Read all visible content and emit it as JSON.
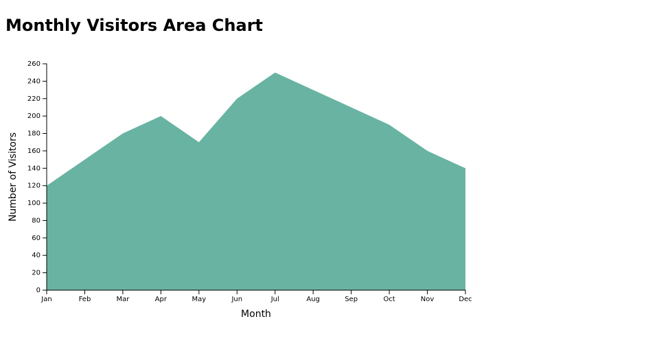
{
  "chart_data": {
    "type": "area",
    "title": "Monthly Visitors Area Chart",
    "x_label": "Month",
    "y_label": "Number of Visitors",
    "categories": [
      "Jan",
      "Feb",
      "Mar",
      "Apr",
      "May",
      "Jun",
      "Jul",
      "Aug",
      "Sep",
      "Oct",
      "Nov",
      "Dec"
    ],
    "values": [
      120,
      150,
      180,
      200,
      170,
      220,
      250,
      230,
      210,
      190,
      160,
      140
    ],
    "color": "#69b3a2",
    "ylim": [
      0,
      260
    ],
    "yticks": [
      0,
      20,
      40,
      60,
      80,
      100,
      120,
      140,
      160,
      180,
      200,
      220,
      240,
      260
    ],
    "grid": false
  }
}
